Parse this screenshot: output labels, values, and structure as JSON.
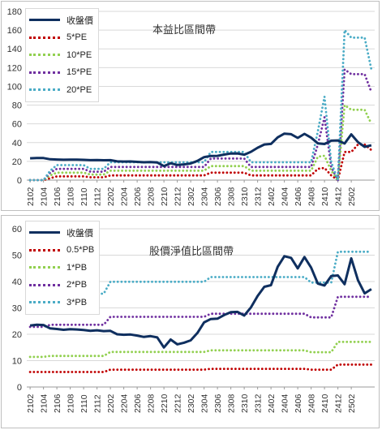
{
  "chart_data": [
    {
      "type": "line",
      "title": "本益比區間帶",
      "ylim": [
        0,
        180
      ],
      "yticks": [
        0,
        20,
        40,
        60,
        80,
        100,
        120,
        140,
        160,
        180
      ],
      "xtick_labels": [
        "2102",
        "2104",
        "2106",
        "2108",
        "2110",
        "2112",
        "2202",
        "2204",
        "2206",
        "2208",
        "2210",
        "2212",
        "2302",
        "2304",
        "2306",
        "2308",
        "2310",
        "2312",
        "2402",
        "2404",
        "2406",
        "2408",
        "2410",
        "2412",
        "2502"
      ],
      "grid": true,
      "legend_position": "top-left",
      "series": [
        {
          "name": "收盤價",
          "color": "#0f2f5f",
          "style": "solid",
          "values": [
            23.3,
            23.6,
            23.5,
            22.2,
            22.0,
            21.7,
            21.9,
            21.8,
            21.6,
            21.3,
            21.5,
            21.2,
            21.3,
            20.0,
            19.8,
            19.9,
            19.5,
            19.0,
            19.3,
            18.8,
            15.0,
            18.0,
            16.2,
            16.8,
            17.7,
            20.5,
            24.5,
            25.8,
            25.9,
            27.3,
            28.4,
            28.5,
            27.1,
            30.2,
            34.5,
            38.0,
            38.6,
            45.6,
            49.6,
            49.0,
            45.0,
            49.3,
            45.3,
            39.2,
            38.5,
            42.1,
            42.3,
            39.0,
            48.8,
            40.5,
            35.5,
            37.1
          ]
        },
        {
          "name": "5*PE",
          "color": "#c00000",
          "style": "dotted",
          "values": [
            0,
            0,
            0,
            2,
            4,
            4,
            4,
            4,
            4,
            3,
            3,
            3,
            5,
            5,
            5,
            5,
            5,
            5,
            5,
            5,
            5,
            5,
            5,
            5,
            5,
            5,
            5,
            8,
            8,
            8,
            8,
            8,
            8,
            5,
            5,
            5,
            5,
            5,
            5,
            5,
            5,
            5,
            5,
            12,
            13,
            5,
            0,
            30,
            30,
            38,
            38,
            32
          ]
        },
        {
          "name": "10*PE",
          "color": "#92d050",
          "style": "dotted",
          "values": [
            0,
            0,
            0,
            5,
            8,
            8,
            8,
            8,
            8,
            6,
            6,
            6,
            10,
            10,
            10,
            10,
            10,
            10,
            10,
            10,
            10,
            10,
            10,
            10,
            10,
            10,
            10,
            15,
            15,
            15,
            15,
            15,
            15,
            10,
            10,
            10,
            10,
            10,
            10,
            10,
            10,
            10,
            10,
            25,
            26,
            10,
            0,
            80,
            75,
            75,
            75,
            60
          ]
        },
        {
          "name": "15*PE",
          "color": "#7030a0",
          "style": "dotted",
          "values": [
            0,
            0,
            0,
            8,
            12,
            12,
            12,
            12,
            12,
            9,
            9,
            9,
            14,
            14,
            14,
            14,
            14,
            14,
            14,
            14,
            14,
            14,
            14,
            14,
            14,
            14,
            14,
            23,
            23,
            23,
            23,
            23,
            23,
            14,
            14,
            14,
            14,
            14,
            14,
            14,
            14,
            14,
            14,
            38,
            67,
            14,
            0,
            118,
            113,
            113,
            113,
            94
          ]
        },
        {
          "name": "20*PE",
          "color": "#4bacc6",
          "style": "dotted",
          "values": [
            0,
            0,
            0,
            10,
            16,
            16,
            16,
            16,
            16,
            12,
            12,
            12,
            19,
            19,
            19,
            19,
            19,
            19,
            19,
            19,
            19,
            19,
            19,
            19,
            19,
            19,
            19,
            30,
            30,
            30,
            30,
            30,
            30,
            19,
            19,
            19,
            19,
            19,
            19,
            19,
            19,
            19,
            19,
            52,
            89,
            19,
            0,
            160,
            152,
            152,
            152,
            118
          ]
        }
      ]
    },
    {
      "type": "line",
      "title": "股價淨值比區間帶",
      "ylim": [
        0,
        60
      ],
      "yticks": [
        0,
        10,
        20,
        30,
        40,
        50,
        60
      ],
      "xtick_labels": [
        "2102",
        "2104",
        "2106",
        "2108",
        "2110",
        "2112",
        "2202",
        "2204",
        "2206",
        "2208",
        "2210",
        "2212",
        "2302",
        "2304",
        "2306",
        "2308",
        "2310",
        "2312",
        "2402",
        "2404",
        "2406",
        "2408",
        "2410",
        "2412",
        "2502"
      ],
      "grid": true,
      "legend_position": "top-left",
      "series": [
        {
          "name": "收盤價",
          "color": "#0f2f5f",
          "style": "solid",
          "values": [
            23.3,
            23.6,
            23.5,
            22.2,
            22.0,
            21.7,
            21.9,
            21.8,
            21.6,
            21.3,
            21.5,
            21.2,
            21.3,
            20.0,
            19.8,
            19.9,
            19.5,
            19.0,
            19.3,
            18.8,
            15.0,
            18.0,
            16.2,
            16.8,
            17.7,
            20.5,
            24.5,
            25.8,
            25.9,
            27.3,
            28.4,
            28.5,
            27.1,
            30.2,
            34.5,
            38.0,
            38.6,
            45.6,
            49.6,
            49.0,
            45.0,
            49.3,
            45.3,
            39.2,
            38.5,
            42.1,
            42.3,
            39.0,
            48.8,
            40.5,
            35.5,
            37.1
          ]
        },
        {
          "name": "0.5*PB",
          "color": "#c00000",
          "style": "dotted",
          "values": [
            5.7,
            5.7,
            5.7,
            5.7,
            5.7,
            5.7,
            5.7,
            5.7,
            5.7,
            5.7,
            5.7,
            5.7,
            6.6,
            6.6,
            6.6,
            6.6,
            6.6,
            6.6,
            6.6,
            6.6,
            6.6,
            6.6,
            6.6,
            6.6,
            6.6,
            6.6,
            6.6,
            6.9,
            6.9,
            6.9,
            6.9,
            6.9,
            6.9,
            6.9,
            6.9,
            6.9,
            6.9,
            6.9,
            6.9,
            6.9,
            6.9,
            6.9,
            6.6,
            6.6,
            6.6,
            6.6,
            8.5,
            8.5,
            8.5,
            8.5,
            8.5,
            8.5
          ]
        },
        {
          "name": "1*PB",
          "color": "#92d050",
          "style": "dotted",
          "values": [
            11.4,
            11.4,
            11.4,
            11.8,
            11.8,
            11.8,
            11.8,
            11.8,
            11.8,
            11.8,
            11.8,
            11.8,
            13.3,
            13.3,
            13.3,
            13.3,
            13.3,
            13.3,
            13.3,
            13.3,
            13.3,
            13.3,
            13.3,
            13.3,
            13.3,
            13.3,
            13.3,
            13.9,
            13.9,
            13.9,
            13.9,
            13.9,
            13.9,
            13.9,
            13.9,
            13.9,
            13.9,
            13.9,
            13.9,
            13.9,
            13.9,
            13.9,
            13.2,
            13.2,
            13.2,
            13.2,
            17.1,
            17.1,
            17.1,
            17.1,
            17.1,
            17.1
          ]
        },
        {
          "name": "2*PB",
          "color": "#7030a0",
          "style": "dotted",
          "values": [
            22.8,
            22.8,
            22.8,
            23.6,
            23.6,
            23.6,
            23.6,
            23.6,
            23.6,
            23.6,
            23.6,
            23.6,
            26.6,
            26.6,
            26.6,
            26.6,
            26.6,
            26.6,
            26.6,
            26.6,
            26.6,
            26.6,
            26.6,
            26.6,
            26.6,
            26.6,
            26.6,
            27.8,
            27.8,
            27.8,
            27.8,
            27.8,
            27.8,
            27.8,
            27.8,
            27.8,
            27.8,
            27.8,
            27.8,
            27.8,
            27.8,
            27.8,
            26.4,
            26.4,
            26.4,
            26.4,
            34.2,
            34.2,
            34.2,
            34.2,
            34.2,
            34.2
          ]
        },
        {
          "name": "3*PB",
          "color": "#4bacc6",
          "style": "dotted",
          "values": [
            34.2,
            35.4,
            35.4,
            35.4,
            35.4,
            35.4,
            35.4,
            35.4,
            35.4,
            35.4,
            35.4,
            35.4,
            39.9,
            39.9,
            39.9,
            39.9,
            39.9,
            39.9,
            39.9,
            39.9,
            39.9,
            39.9,
            39.9,
            39.9,
            39.9,
            39.9,
            39.9,
            41.7,
            41.7,
            41.7,
            41.7,
            41.7,
            41.7,
            41.7,
            41.7,
            41.7,
            41.7,
            41.7,
            41.7,
            41.7,
            41.7,
            41.7,
            39.6,
            39.6,
            39.6,
            39.6,
            51.3,
            51.3,
            51.3,
            51.3,
            51.3,
            51.3
          ]
        }
      ]
    }
  ]
}
